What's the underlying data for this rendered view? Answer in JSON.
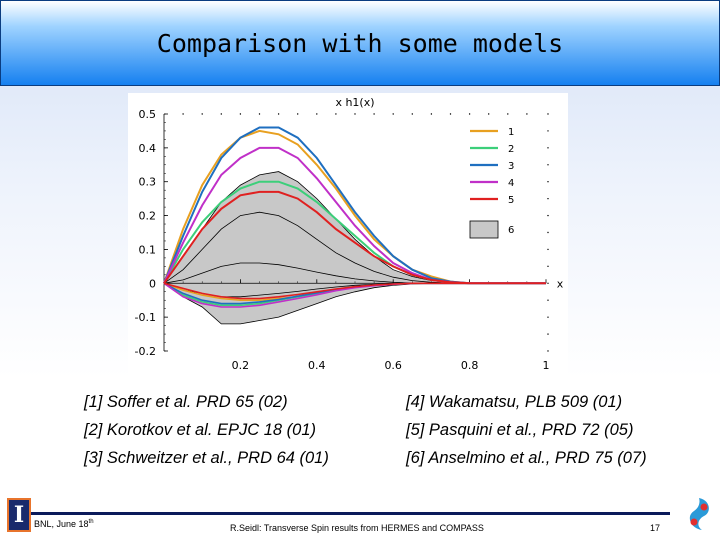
{
  "title": "Comparison with some models",
  "chart_data": {
    "type": "line",
    "title": "x h1(x)",
    "xlabel": "x",
    "ylabel": "",
    "xlim": [
      0,
      1
    ],
    "ylim": [
      -0.2,
      0.5
    ],
    "x_ticks": [
      "0.2",
      "0.4",
      "0.6",
      "0.8",
      "1"
    ],
    "y_ticks": [
      "0.5",
      "0.4",
      "0.3",
      "0.2",
      "0.1",
      "0",
      "-0.1",
      "-0.2"
    ],
    "x": [
      0,
      0.05,
      0.1,
      0.15,
      0.2,
      0.25,
      0.3,
      0.35,
      0.4,
      0.45,
      0.5,
      0.55,
      0.6,
      0.65,
      0.7,
      0.75,
      0.8,
      0.85,
      0.9,
      1.0
    ],
    "series": [
      {
        "name": "1",
        "color": "#e8a020",
        "values": [
          0,
          0.16,
          0.29,
          0.38,
          0.43,
          0.45,
          0.44,
          0.41,
          0.35,
          0.28,
          0.2,
          0.13,
          0.08,
          0.04,
          0.02,
          0.005,
          0,
          0,
          0,
          0
        ]
      },
      {
        "name": "2",
        "color": "#3ccf7a",
        "values": [
          0,
          0.1,
          0.18,
          0.24,
          0.28,
          0.3,
          0.3,
          0.28,
          0.24,
          0.19,
          0.14,
          0.09,
          0.05,
          0.025,
          0.01,
          0.003,
          0,
          0,
          0,
          0
        ]
      },
      {
        "name": "3",
        "color": "#1f6fc0",
        "values": [
          0,
          0.14,
          0.27,
          0.37,
          0.43,
          0.46,
          0.46,
          0.43,
          0.37,
          0.29,
          0.21,
          0.14,
          0.08,
          0.04,
          0.015,
          0.005,
          0,
          0,
          0,
          0
        ]
      },
      {
        "name": "4",
        "color": "#c030c8",
        "values": [
          0,
          0.12,
          0.23,
          0.32,
          0.37,
          0.4,
          0.4,
          0.37,
          0.31,
          0.24,
          0.17,
          0.11,
          0.06,
          0.03,
          0.01,
          0.003,
          0,
          0,
          0,
          0
        ]
      },
      {
        "name": "5",
        "color": "#e02020",
        "values": [
          0,
          0.08,
          0.16,
          0.22,
          0.26,
          0.27,
          0.27,
          0.25,
          0.21,
          0.16,
          0.12,
          0.08,
          0.05,
          0.025,
          0.01,
          0.003,
          0,
          0,
          0,
          0
        ]
      }
    ],
    "series_negative": [
      {
        "name": "1",
        "color": "#e8a020",
        "values": [
          0,
          -0.02,
          -0.035,
          -0.045,
          -0.05,
          -0.05,
          -0.045,
          -0.04,
          -0.03,
          -0.02,
          -0.012,
          -0.006,
          -0.003,
          0,
          0,
          0,
          0,
          0,
          0,
          0
        ]
      },
      {
        "name": "2",
        "color": "#3ccf7a",
        "values": [
          0,
          -0.035,
          -0.055,
          -0.065,
          -0.065,
          -0.06,
          -0.05,
          -0.04,
          -0.03,
          -0.02,
          -0.012,
          -0.006,
          -0.003,
          0,
          0,
          0,
          0,
          0,
          0,
          0
        ]
      },
      {
        "name": "3",
        "color": "#1f6fc0",
        "values": [
          0,
          -0.03,
          -0.05,
          -0.06,
          -0.06,
          -0.055,
          -0.048,
          -0.038,
          -0.028,
          -0.018,
          -0.01,
          -0.005,
          -0.002,
          0,
          0,
          0,
          0,
          0,
          0,
          0
        ]
      },
      {
        "name": "4",
        "color": "#c030c8",
        "values": [
          0,
          -0.04,
          -0.06,
          -0.07,
          -0.07,
          -0.065,
          -0.055,
          -0.045,
          -0.034,
          -0.022,
          -0.013,
          -0.007,
          -0.003,
          0,
          0,
          0,
          0,
          0,
          0,
          0
        ]
      },
      {
        "name": "5",
        "color": "#e02020",
        "values": [
          0,
          -0.015,
          -0.03,
          -0.04,
          -0.045,
          -0.045,
          -0.04,
          -0.033,
          -0.025,
          -0.017,
          -0.01,
          -0.005,
          -0.002,
          0,
          0,
          0,
          0,
          0,
          0,
          0
        ]
      }
    ],
    "band": {
      "name": "6",
      "color": "#c8c8c8",
      "x": [
        0,
        0.05,
        0.1,
        0.15,
        0.2,
        0.25,
        0.3,
        0.35,
        0.4,
        0.45,
        0.5,
        0.55,
        0.6,
        0.65,
        0.7,
        0.75,
        0.8,
        0.85,
        0.9,
        1.0
      ],
      "upper": [
        0,
        0.08,
        0.16,
        0.24,
        0.29,
        0.32,
        0.33,
        0.3,
        0.25,
        0.19,
        0.13,
        0.08,
        0.04,
        0.02,
        0.008,
        0.002,
        0,
        0,
        0,
        0
      ],
      "lower": [
        0,
        -0.04,
        -0.07,
        -0.12,
        -0.12,
        -0.11,
        -0.1,
        -0.08,
        -0.06,
        -0.04,
        -0.025,
        -0.013,
        -0.006,
        -0.002,
        0,
        0,
        0,
        0,
        0,
        0
      ],
      "central_upper": [
        0,
        0.04,
        0.1,
        0.16,
        0.2,
        0.21,
        0.2,
        0.17,
        0.13,
        0.09,
        0.06,
        0.035,
        0.018,
        0.008,
        0.003,
        0.001,
        0,
        0,
        0,
        0
      ],
      "central_lower": [
        0,
        0.01,
        0.03,
        0.05,
        0.06,
        0.06,
        0.055,
        0.045,
        0.033,
        0.022,
        0.013,
        0.007,
        0.003,
        0.001,
        0,
        0,
        0,
        0,
        0,
        0
      ],
      "negative_central": [
        0,
        -0.02,
        -0.03,
        -0.04,
        -0.04,
        -0.035,
        -0.03,
        -0.024,
        -0.017,
        -0.011,
        -0.006,
        -0.003,
        -0.001,
        0,
        0,
        0,
        0,
        0,
        0,
        0
      ]
    },
    "legend_position": "top-right"
  },
  "references": {
    "left": [
      "[1] Soffer et al. PRD 65 (02)",
      "[2] Korotkov et al. EPJC 18 (01)",
      "[3] Schweitzer et al., PRD 64 (01)"
    ],
    "right": [
      "[4] Wakamatsu, PLB 509 (01)",
      "[5] Pasquini et al., PRD 72 (05)",
      "[6] Anselmino et al., PRD 75 (07)"
    ]
  },
  "footer": {
    "left_prefix": "BNL, June 18",
    "left_sup": "th",
    "center": "R.Seidl: Transverse Spin results from HERMES and COMPASS",
    "page": "17",
    "logo_letter": "I"
  },
  "colors": {
    "title_bar_top": "#9fd3ff",
    "title_bar_bottom": "#1580f0",
    "band": "#c8c8c8"
  }
}
